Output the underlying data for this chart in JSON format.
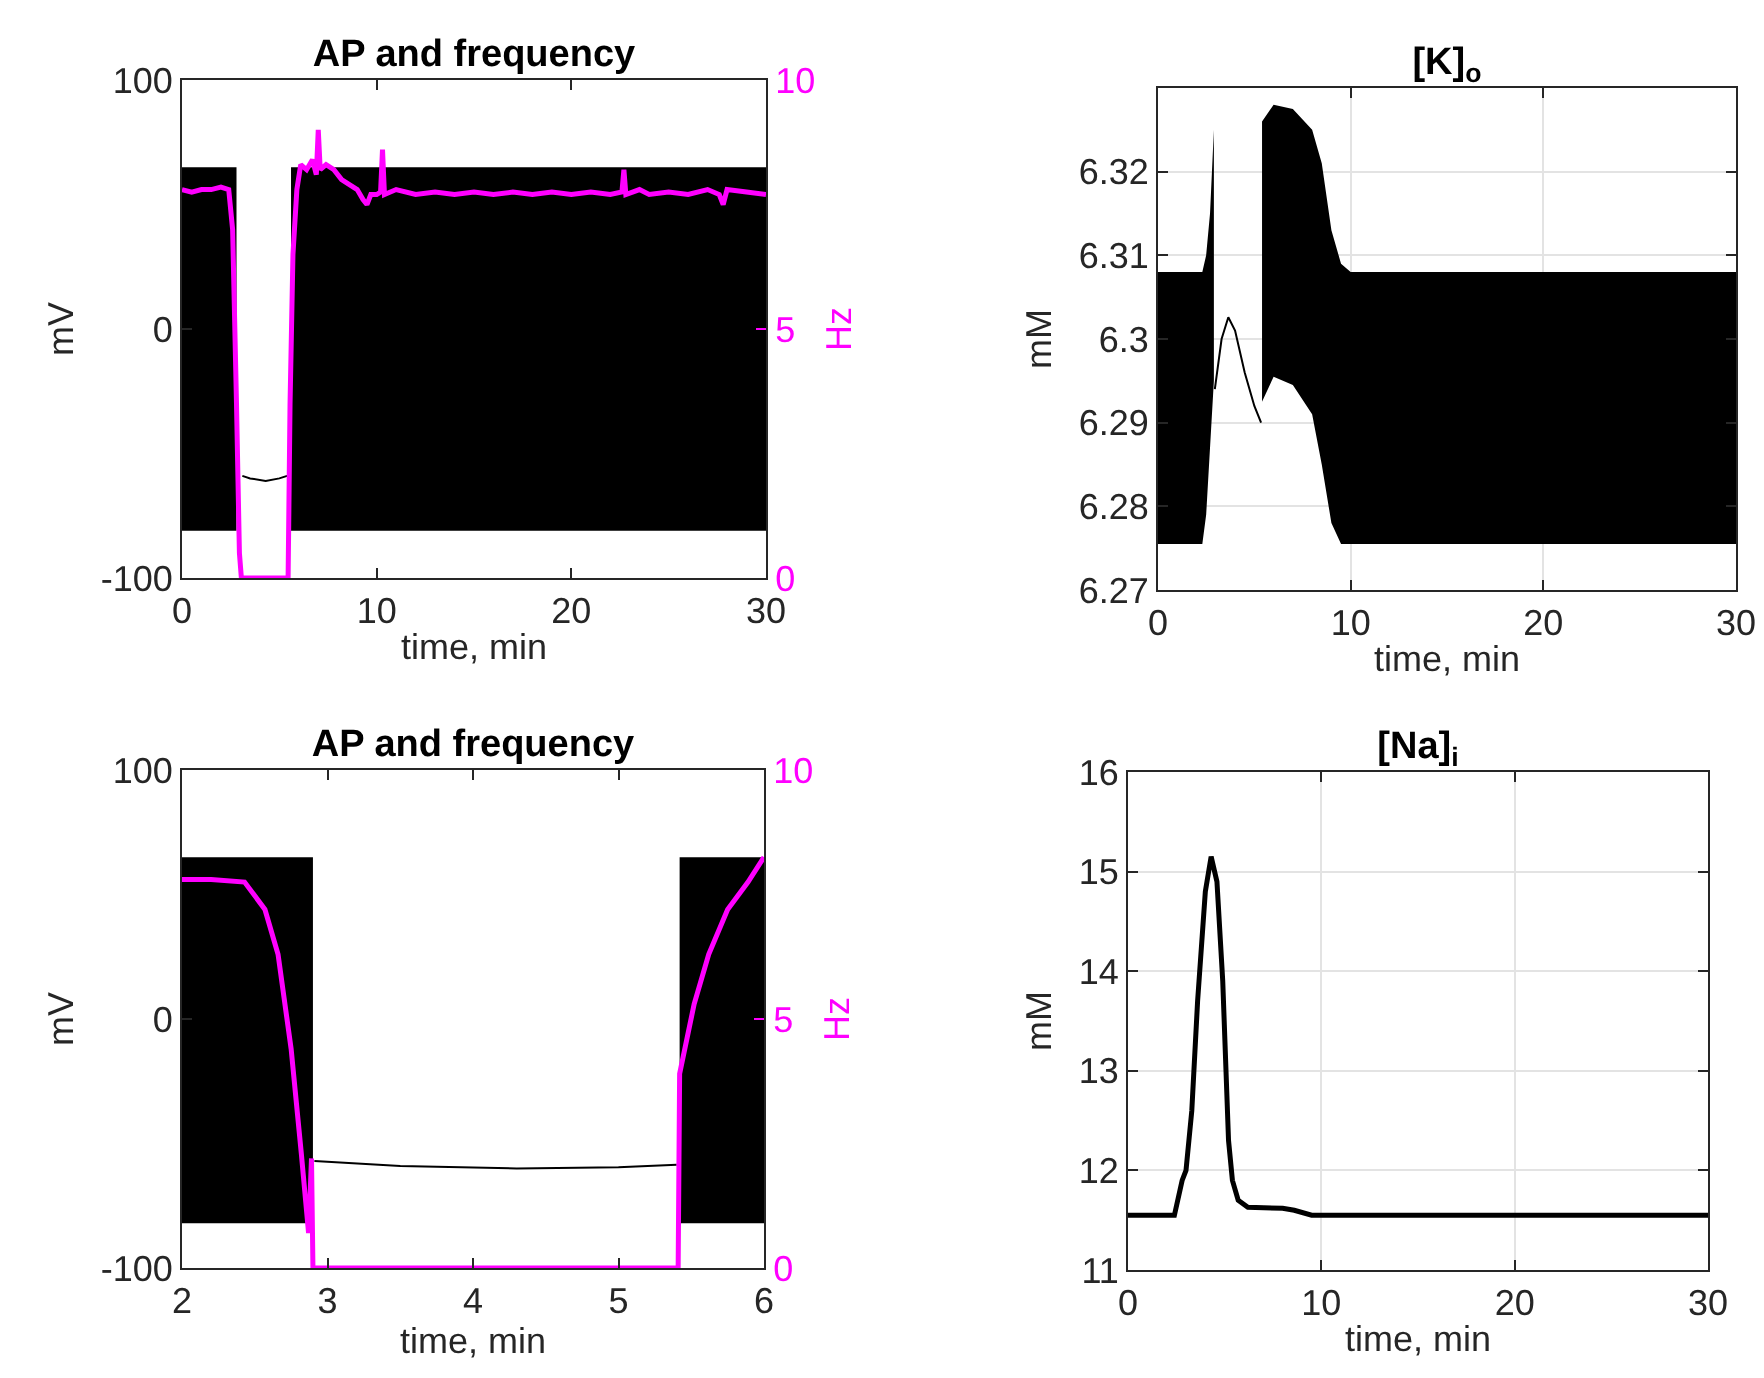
{
  "chart_data": [
    {
      "type": "line",
      "title": "AP and frequency",
      "xlabel": "time, min",
      "ylabel": "mV",
      "y2label": "Hz",
      "xlim": [
        0,
        30
      ],
      "xticks": [
        0,
        10,
        20,
        30
      ],
      "ylim": [
        -100,
        100
      ],
      "yticks": [
        -100,
        0,
        100
      ],
      "y2lim": [
        0,
        10
      ],
      "y2ticks": [
        0,
        5,
        10
      ],
      "grid": false,
      "series": [
        {
          "color": "#000000",
          "x": [
            0,
            2.8,
            3.1,
            3.5,
            4.3,
            5,
            5.4,
            5.6,
            30
          ],
          "values": [
            null,
            null,
            -59,
            -60,
            -61,
            -60,
            -59,
            null,
            null
          ],
          "upper": [
            65,
            65,
            null,
            null,
            null,
            null,
            null,
            65,
            65
          ],
          "lower": [
            -81,
            -81,
            null,
            null,
            null,
            null,
            null,
            -81,
            -81
          ]
        },
        {
          "color": "#ff00ff",
          "axis": "y2",
          "x": [
            0,
            0.5,
            1,
            1.5,
            2,
            2.4,
            2.6,
            2.8,
            2.95,
            3.05,
            5.45,
            5.55,
            5.7,
            5.9,
            6.1,
            6.4,
            6.7,
            6.9,
            7.0,
            7.1,
            7.4,
            7.8,
            8.2,
            8.6,
            9.0,
            9.3,
            9.5,
            9.7,
            10.0,
            10.2,
            10.3,
            10.4,
            11,
            12,
            13,
            14,
            15,
            16,
            17,
            18,
            19,
            20,
            21,
            22,
            22.6,
            22.7,
            22.8,
            23.5,
            24,
            25,
            26,
            27,
            27.6,
            27.8,
            28,
            29,
            30
          ],
          "values": [
            7.8,
            7.75,
            7.8,
            7.8,
            7.85,
            7.8,
            7.0,
            3.5,
            0.5,
            0,
            0,
            3.5,
            6.5,
            7.8,
            8.3,
            8.2,
            8.4,
            8.1,
            9.0,
            8.2,
            8.3,
            8.2,
            8.0,
            7.9,
            7.8,
            7.6,
            7.5,
            7.7,
            7.7,
            7.75,
            8.6,
            7.7,
            7.8,
            7.7,
            7.75,
            7.7,
            7.75,
            7.7,
            7.75,
            7.7,
            7.75,
            7.7,
            7.75,
            7.7,
            7.75,
            8.2,
            7.7,
            7.8,
            7.7,
            7.75,
            7.7,
            7.8,
            7.7,
            7.5,
            7.8,
            7.75,
            7.7
          ]
        }
      ]
    },
    {
      "type": "line",
      "title": "[K]$_{o}$",
      "xlabel": "time, min",
      "ylabel": "mM",
      "xlim": [
        0,
        30
      ],
      "xticks": [
        0,
        10,
        20,
        30
      ],
      "ylim": [
        6.27,
        6.33
      ],
      "yticks": [
        6.27,
        6.28,
        6.29,
        6.3,
        6.31,
        6.32
      ],
      "grid": true,
      "series": [
        {
          "color": "#000000",
          "x": [
            0,
            2.3,
            2.5,
            2.7,
            2.9,
            2.95,
            3.3,
            3.65,
            4,
            4.5,
            5,
            5.35,
            5.4,
            6,
            7,
            8,
            8.5,
            9,
            9.5,
            10,
            20,
            30
          ],
          "values": [
            null,
            null,
            null,
            null,
            null,
            6.294,
            6.3,
            6.3026,
            6.301,
            6.296,
            6.292,
            6.29,
            null,
            null,
            null,
            null,
            null,
            null,
            null,
            null,
            null,
            null
          ],
          "upper": [
            6.308,
            6.308,
            6.31,
            6.315,
            6.325,
            null,
            null,
            null,
            null,
            null,
            null,
            null,
            6.326,
            6.328,
            6.3275,
            6.325,
            6.321,
            6.313,
            6.309,
            6.308,
            6.308,
            6.308
          ],
          "lower": [
            6.2755,
            6.2755,
            6.279,
            6.287,
            6.295,
            null,
            null,
            null,
            null,
            null,
            null,
            null,
            6.2925,
            6.2955,
            6.2945,
            6.291,
            6.285,
            6.278,
            6.2755,
            6.2755,
            6.2755,
            6.2755
          ]
        }
      ]
    },
    {
      "type": "line",
      "title": "AP and frequency",
      "xlabel": "time, min",
      "ylabel": "mV",
      "y2label": "Hz",
      "xlim": [
        2,
        6
      ],
      "xticks": [
        2,
        3,
        4,
        5,
        6
      ],
      "ylim": [
        -100,
        100
      ],
      "yticks": [
        -100,
        0,
        100
      ],
      "y2lim": [
        0,
        10
      ],
      "y2ticks": [
        0,
        5,
        10
      ],
      "grid": false,
      "series": [
        {
          "color": "#000000",
          "x": [
            2,
            2.9,
            2.91,
            3.5,
            4.3,
            5,
            5.4,
            5.42,
            6
          ],
          "values": [
            null,
            null,
            -57,
            -59,
            -60,
            -59.5,
            -58.5,
            null,
            null
          ],
          "upper": [
            65,
            65,
            null,
            null,
            null,
            null,
            null,
            65,
            65
          ],
          "lower": [
            -82,
            -82,
            null,
            null,
            null,
            null,
            null,
            -82,
            -82
          ]
        },
        {
          "color": "#ff00ff",
          "axis": "y2",
          "x": [
            2,
            2.2,
            2.43,
            2.57,
            2.66,
            2.75,
            2.82,
            2.87,
            2.89,
            2.9,
            5.41,
            5.42,
            5.52,
            5.62,
            5.75,
            5.89,
            6
          ],
          "values": [
            7.8,
            7.8,
            7.75,
            7.2,
            6.3,
            4.4,
            2.3,
            0.7,
            2.2,
            0,
            0,
            3.9,
            5.3,
            6.3,
            7.2,
            7.75,
            8.25
          ]
        }
      ]
    },
    {
      "type": "line",
      "title": "[Na]$_{i}$",
      "xlabel": "time, min",
      "ylabel": "mM",
      "xlim": [
        0,
        30
      ],
      "xticks": [
        0,
        10,
        20,
        30
      ],
      "ylim": [
        11,
        16
      ],
      "yticks": [
        11,
        12,
        13,
        14,
        15,
        16
      ],
      "grid": true,
      "series": [
        {
          "color": "#000000",
          "x": [
            0,
            2.4,
            2.8,
            3.0,
            3.3,
            3.6,
            4.0,
            4.3,
            4.6,
            4.9,
            5.2,
            5.4,
            5.7,
            6.2,
            8,
            8.6,
            9.5,
            30
          ],
          "values": [
            11.55,
            11.55,
            11.9,
            12.0,
            12.6,
            13.7,
            14.8,
            15.15,
            14.9,
            13.9,
            12.3,
            11.9,
            11.7,
            11.63,
            11.62,
            11.6,
            11.55,
            11.55
          ]
        }
      ]
    }
  ]
}
